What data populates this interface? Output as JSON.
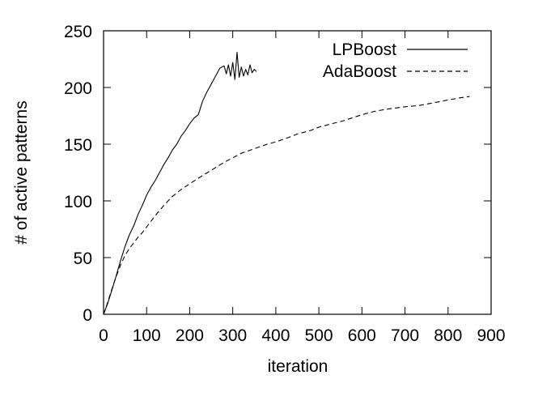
{
  "chart_data": {
    "type": "line",
    "xlabel": "iteration",
    "ylabel": "# of active patterns",
    "xlim": [
      0,
      900
    ],
    "ylim": [
      0,
      250
    ],
    "xticks": [
      0,
      100,
      200,
      300,
      400,
      500,
      600,
      700,
      800,
      900
    ],
    "yticks": [
      0,
      50,
      100,
      150,
      200,
      250
    ],
    "grid": false,
    "legend_position": "top-right",
    "series": [
      {
        "name": "LPBoost",
        "style": "solid",
        "color": "#000000",
        "x": [
          0,
          10,
          20,
          30,
          40,
          50,
          60,
          70,
          80,
          90,
          100,
          110,
          120,
          130,
          140,
          150,
          160,
          170,
          180,
          190,
          200,
          210,
          220,
          230,
          240,
          250,
          260,
          270,
          280,
          285,
          290,
          295,
          300,
          305,
          310,
          315,
          320,
          325,
          330,
          335,
          340,
          345,
          350,
          355
        ],
        "y": [
          0,
          10,
          22,
          35,
          48,
          60,
          70,
          78,
          88,
          96,
          105,
          112,
          118,
          125,
          132,
          138,
          145,
          150,
          157,
          162,
          168,
          173,
          176,
          188,
          196,
          203,
          210,
          217,
          219,
          212,
          220,
          210,
          222,
          207,
          231,
          209,
          218,
          210,
          216,
          211,
          220,
          213,
          216,
          214
        ]
      },
      {
        "name": "AdaBoost",
        "style": "dashed",
        "color": "#000000",
        "x": [
          0,
          10,
          20,
          30,
          40,
          50,
          60,
          70,
          80,
          90,
          100,
          120,
          140,
          160,
          180,
          200,
          220,
          250,
          280,
          300,
          320,
          350,
          380,
          400,
          430,
          450,
          480,
          500,
          530,
          560,
          600,
          630,
          660,
          700,
          730,
          760,
          800,
          830,
          850
        ],
        "y": [
          0,
          11,
          23,
          34,
          44,
          52,
          58,
          63,
          68,
          72,
          77,
          87,
          96,
          104,
          110,
          115,
          120,
          127,
          134,
          138,
          142,
          146,
          150,
          152,
          156,
          159,
          162,
          165,
          168,
          171,
          176,
          179,
          181,
          183,
          184,
          186,
          189,
          191,
          192
        ]
      }
    ]
  }
}
